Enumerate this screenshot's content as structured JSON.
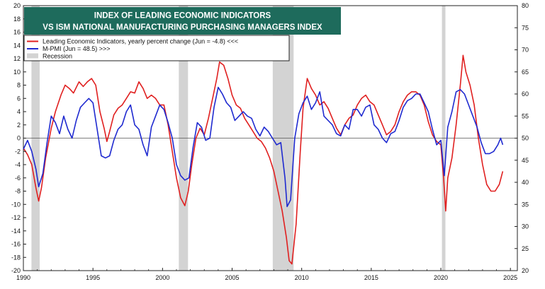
{
  "chart_data": {
    "type": "line",
    "title": [
      "INDEX OF LEADING  ECONOMIC  INDICATORS",
      "VS ISM NATIONAL MANUFACTURING PURCHASING MANAGERS INDEX"
    ],
    "xlabel": "",
    "ylabel_left": "",
    "ylabel_right": "",
    "xlim": [
      1990,
      2025.5
    ],
    "ylim_left": [
      -20,
      20
    ],
    "ylim_right": [
      20,
      80
    ],
    "x_ticks": [
      1990,
      1995,
      2000,
      2005,
      2010,
      2015,
      2020,
      2025
    ],
    "x_tick_labels": [
      "1990",
      "1995",
      "2000",
      "2005",
      "2010",
      "2015",
      "2020",
      "2025"
    ],
    "y_left_ticks": [
      -20,
      -18,
      -16,
      -14,
      -12,
      -10,
      -8,
      -6,
      -4,
      -2,
      0,
      2,
      4,
      6,
      8,
      10,
      12,
      14,
      16,
      18,
      20
    ],
    "y_left_tick_labels": [
      "-20",
      "-18",
      "-16",
      "-14",
      "-12",
      "-10",
      "-8",
      "-6",
      "-4",
      "-2",
      "0",
      "2",
      "4",
      "6",
      "8",
      "10",
      "12",
      "14",
      "16",
      "18",
      "20"
    ],
    "y_right_ticks": [
      20,
      25,
      30,
      35,
      40,
      45,
      50,
      55,
      60,
      65,
      70,
      75,
      80
    ],
    "y_right_tick_labels": [
      "20",
      "25",
      "30",
      "35",
      "40",
      "45",
      "50",
      "55",
      "60",
      "65",
      "70",
      "75",
      "80"
    ],
    "zero_line": 0,
    "grid": false,
    "legend_position": "top-left",
    "legend": [
      {
        "label": "Leading Economic Indicators, yearly percent change (Jun = -4.8) <<<",
        "color": "#e02020",
        "kind": "line"
      },
      {
        "label": "M-PMI (Jun = 48.5) >>>",
        "color": "#1f2ad0",
        "kind": "line"
      },
      {
        "label": "Recession",
        "color": "#d3d3d3",
        "kind": "box"
      }
    ],
    "recessions": [
      [
        1990.58,
        1991.17
      ],
      [
        2001.17,
        2001.83
      ],
      [
        2007.92,
        2009.42
      ],
      [
        2020.08,
        2020.33
      ]
    ],
    "series": [
      {
        "name": "Leading Economic Indicators, yearly percent change",
        "axis": "left",
        "color": "#e02020",
        "x": [
          1990.0,
          1990.3,
          1990.6,
          1990.9,
          1991.1,
          1991.3,
          1991.6,
          1992.0,
          1992.3,
          1992.7,
          1993.0,
          1993.3,
          1993.6,
          1994.0,
          1994.3,
          1994.6,
          1994.9,
          1995.2,
          1995.5,
          1995.8,
          1996.0,
          1996.2,
          1996.5,
          1996.8,
          1997.1,
          1997.4,
          1997.7,
          1998.0,
          1998.3,
          1998.6,
          1998.9,
          1999.2,
          1999.5,
          1999.8,
          2000.1,
          2000.4,
          2000.7,
          2001.0,
          2001.3,
          2001.6,
          2001.85,
          2002.1,
          2002.4,
          2002.7,
          2003.0,
          2003.3,
          2003.6,
          2003.9,
          2004.1,
          2004.4,
          2004.7,
          2005.0,
          2005.3,
          2005.6,
          2005.9,
          2006.2,
          2006.5,
          2006.8,
          2007.1,
          2007.4,
          2007.7,
          2008.0,
          2008.3,
          2008.6,
          2008.9,
          2009.1,
          2009.3,
          2009.6,
          2009.9,
          2010.1,
          2010.4,
          2010.7,
          2011.0,
          2011.3,
          2011.6,
          2011.9,
          2012.2,
          2012.5,
          2012.8,
          2013.1,
          2013.4,
          2013.7,
          2014.0,
          2014.3,
          2014.6,
          2014.9,
          2015.2,
          2015.5,
          2015.8,
          2016.1,
          2016.4,
          2016.7,
          2017.0,
          2017.3,
          2017.6,
          2017.9,
          2018.2,
          2018.5,
          2018.8,
          2019.1,
          2019.4,
          2019.7,
          2020.0,
          2020.2,
          2020.35,
          2020.5,
          2020.8,
          2021.1,
          2021.4,
          2021.6,
          2021.8,
          2022.1,
          2022.4,
          2022.7,
          2023.0,
          2023.3,
          2023.6,
          2023.9,
          2024.2,
          2024.45
        ],
        "values": [
          -1.5,
          -2.5,
          -4.0,
          -7.5,
          -9.5,
          -7.5,
          -3.0,
          1.5,
          4.0,
          6.5,
          8.0,
          7.5,
          6.8,
          8.5,
          7.8,
          8.5,
          9.0,
          8.0,
          4.0,
          1.5,
          -0.5,
          1.0,
          3.5,
          4.5,
          5.0,
          6.0,
          7.0,
          6.8,
          8.5,
          7.5,
          6.0,
          6.5,
          6.0,
          5.0,
          5.0,
          2.0,
          -2.0,
          -6.0,
          -9.0,
          -10.2,
          -8.0,
          -4.0,
          0.0,
          1.5,
          0.5,
          3.0,
          6.0,
          9.0,
          11.5,
          11.0,
          9.0,
          6.5,
          5.0,
          4.5,
          3.0,
          2.0,
          1.0,
          0.0,
          -0.5,
          -1.5,
          -3.0,
          -5.0,
          -8.0,
          -11.0,
          -15.0,
          -18.5,
          -19.0,
          -13.0,
          -2.0,
          4.5,
          9.0,
          7.5,
          6.5,
          5.0,
          5.5,
          4.5,
          3.0,
          1.5,
          0.5,
          2.0,
          3.0,
          3.5,
          5.0,
          6.0,
          6.5,
          5.5,
          5.0,
          3.5,
          2.0,
          0.5,
          1.0,
          2.0,
          4.0,
          5.5,
          6.5,
          7.0,
          7.0,
          6.5,
          5.0,
          2.5,
          0.5,
          -0.5,
          -1.0,
          -6.0,
          -11.0,
          -6.0,
          -3.0,
          2.0,
          8.0,
          12.5,
          10.0,
          8.0,
          5.0,
          0.0,
          -4.0,
          -7.0,
          -8.0,
          -8.0,
          -7.0,
          -5.0
        ]
      },
      {
        "name": "M-PMI",
        "axis": "right",
        "color": "#1f2ad0",
        "x": [
          1990.0,
          1990.3,
          1990.6,
          1990.9,
          1991.1,
          1991.4,
          1991.7,
          1992.0,
          1992.3,
          1992.6,
          1992.9,
          1993.2,
          1993.5,
          1993.8,
          1994.1,
          1994.4,
          1994.7,
          1995.0,
          1995.3,
          1995.6,
          1995.9,
          1996.2,
          1996.5,
          1996.8,
          1997.1,
          1997.4,
          1997.7,
          1998.0,
          1998.3,
          1998.6,
          1998.9,
          1999.2,
          1999.5,
          1999.8,
          2000.1,
          2000.4,
          2000.7,
          2001.0,
          2001.3,
          2001.6,
          2001.9,
          2002.2,
          2002.5,
          2002.8,
          2003.1,
          2003.4,
          2003.7,
          2004.0,
          2004.3,
          2004.6,
          2004.9,
          2005.2,
          2005.5,
          2005.8,
          2006.1,
          2006.4,
          2006.7,
          2007.0,
          2007.3,
          2007.6,
          2007.9,
          2008.2,
          2008.5,
          2008.8,
          2008.95,
          2009.2,
          2009.5,
          2009.8,
          2010.1,
          2010.4,
          2010.7,
          2011.0,
          2011.3,
          2011.6,
          2011.9,
          2012.2,
          2012.5,
          2012.8,
          2013.1,
          2013.4,
          2013.7,
          2014.0,
          2014.3,
          2014.6,
          2014.9,
          2015.2,
          2015.5,
          2015.8,
          2016.1,
          2016.4,
          2016.7,
          2017.0,
          2017.3,
          2017.6,
          2017.9,
          2018.2,
          2018.5,
          2018.8,
          2019.1,
          2019.4,
          2019.7,
          2020.0,
          2020.25,
          2020.5,
          2020.8,
          2021.1,
          2021.4,
          2021.7,
          2022.0,
          2022.3,
          2022.6,
          2022.9,
          2023.2,
          2023.5,
          2023.8,
          2024.1,
          2024.3,
          2024.45
        ],
        "values": [
          47.5,
          49.5,
          47.0,
          43.0,
          39.0,
          42.0,
          49.0,
          55.0,
          53.5,
          51.0,
          55.0,
          52.0,
          50.0,
          54.0,
          57.0,
          58.0,
          59.0,
          58.0,
          52.0,
          46.0,
          45.5,
          46.0,
          49.5,
          52.0,
          53.0,
          56.0,
          57.5,
          53.0,
          52.0,
          48.5,
          46.0,
          52.5,
          55.0,
          57.5,
          56.5,
          53.5,
          50.0,
          44.0,
          41.5,
          40.5,
          41.0,
          48.0,
          53.5,
          52.5,
          49.5,
          50.0,
          57.0,
          61.5,
          60.0,
          58.0,
          57.0,
          54.0,
          55.0,
          56.0,
          55.0,
          54.5,
          52.0,
          50.5,
          52.5,
          51.5,
          50.0,
          48.5,
          49.0,
          41.0,
          34.5,
          36.0,
          50.0,
          55.5,
          58.0,
          59.5,
          56.5,
          58.0,
          60.5,
          55.0,
          54.0,
          53.0,
          51.0,
          50.5,
          53.0,
          52.0,
          56.5,
          56.5,
          55.0,
          57.0,
          57.5,
          53.0,
          52.0,
          50.0,
          49.0,
          51.0,
          51.5,
          54.0,
          57.0,
          58.5,
          59.0,
          60.0,
          60.0,
          58.0,
          56.0,
          52.0,
          48.5,
          49.5,
          41.5,
          52.5,
          56.0,
          60.5,
          61.0,
          60.0,
          57.5,
          55.0,
          52.5,
          49.0,
          46.5,
          46.5,
          47.0,
          48.5,
          50.0,
          48.5
        ]
      }
    ]
  }
}
